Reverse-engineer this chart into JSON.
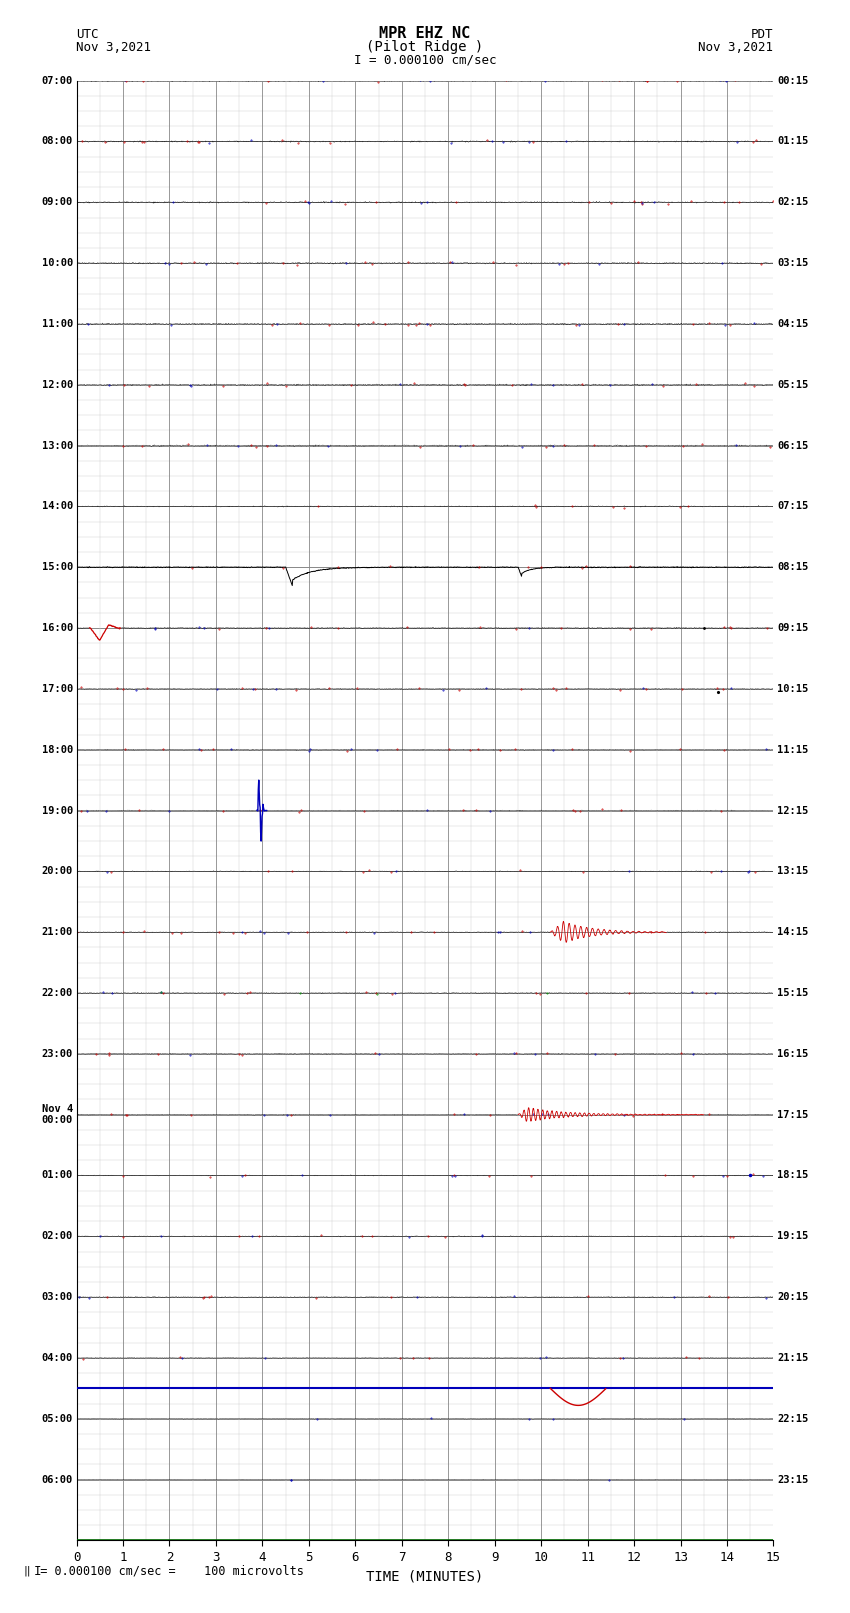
{
  "title_line1": "MPR EHZ NC",
  "title_line2": "(Pilot Ridge )",
  "scale_label": "I = 0.000100 cm/sec",
  "left_label_top": "UTC",
  "left_label_bot": "Nov 3,2021",
  "right_label_top": "PDT",
  "right_label_bot": "Nov 3,2021",
  "footer_label": "= 0.000100 cm/sec =    100 microvolts",
  "xlabel": "TIME (MINUTES)",
  "xlim": [
    0,
    15
  ],
  "xticks": [
    0,
    1,
    2,
    3,
    4,
    5,
    6,
    7,
    8,
    9,
    10,
    11,
    12,
    13,
    14,
    15
  ],
  "num_rows": 24,
  "utc_labels": [
    "07:00",
    "08:00",
    "09:00",
    "10:00",
    "11:00",
    "12:00",
    "13:00",
    "14:00",
    "15:00",
    "16:00",
    "17:00",
    "18:00",
    "19:00",
    "20:00",
    "21:00",
    "22:00",
    "23:00",
    "Nov 4\n00:00",
    "01:00",
    "02:00",
    "03:00",
    "04:00",
    "05:00",
    "06:00"
  ],
  "pdt_labels": [
    "00:15",
    "01:15",
    "02:15",
    "03:15",
    "04:15",
    "05:15",
    "06:15",
    "07:15",
    "08:15",
    "09:15",
    "10:15",
    "11:15",
    "12:15",
    "13:15",
    "14:15",
    "15:15",
    "16:15",
    "17:15",
    "18:15",
    "19:15",
    "20:15",
    "21:15",
    "22:15",
    "23:15"
  ],
  "bg_color": "#ffffff",
  "major_grid_color": "#888888",
  "minor_grid_color": "#cccccc",
  "trace_black": "#000000",
  "trace_red": "#cc0000",
  "trace_blue": "#0000bb",
  "trace_green": "#009900"
}
